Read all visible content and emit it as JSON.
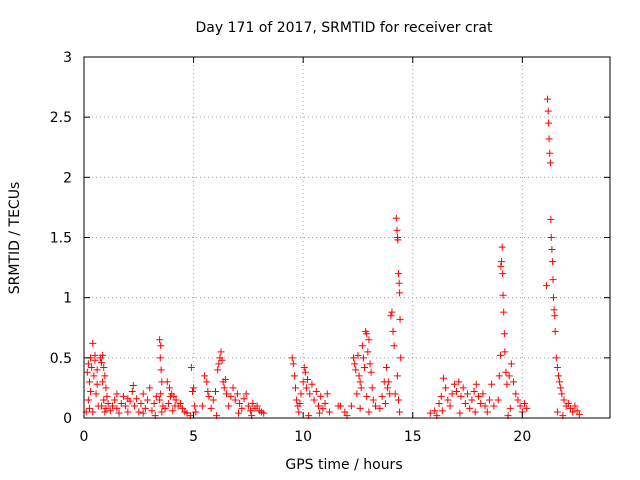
{
  "chart_data": {
    "type": "scatter",
    "title": "Day 171 of 2017, SRMTID for receiver crat",
    "xlabel": "GPS time / hours",
    "ylabel": "SRMTID / TECUs",
    "xlim": [
      0,
      24
    ],
    "ylim": [
      0,
      3
    ],
    "xticks": [
      0,
      5,
      10,
      15,
      20
    ],
    "xtick_labels": [
      "0",
      "5",
      "10",
      "15",
      "20"
    ],
    "yticks": [
      0,
      0.5,
      1,
      1.5,
      2,
      2.5,
      3
    ],
    "ytick_labels": [
      "0",
      "0.5",
      "1",
      "1.5",
      "2",
      "2.5",
      "3"
    ],
    "grid": true,
    "marker": "+",
    "color": "#ff0000",
    "series": [
      {
        "name": "SRMTID",
        "points": [
          [
            0.1,
            0.05
          ],
          [
            0.15,
            0.38
          ],
          [
            0.2,
            0.45
          ],
          [
            0.25,
            0.3
          ],
          [
            0.3,
            0.5
          ],
          [
            0.35,
            0.42
          ],
          [
            0.4,
            0.62
          ],
          [
            0.45,
            0.35
          ],
          [
            0.5,
            0.48
          ],
          [
            0.55,
            0.2
          ],
          [
            0.6,
            0.4
          ],
          [
            0.65,
            0.1
          ],
          [
            0.3,
            0.22
          ],
          [
            0.2,
            0.15
          ],
          [
            0.4,
            0.05
          ],
          [
            0.5,
            0.52
          ],
          [
            0.25,
            0.08
          ],
          [
            0.6,
            0.28
          ],
          [
            0.75,
            0.5
          ],
          [
            0.8,
            0.46
          ],
          [
            0.85,
            0.52
          ],
          [
            0.9,
            0.42
          ],
          [
            0.95,
            0.35
          ],
          [
            1.0,
            0.25
          ],
          [
            1.05,
            0.18
          ],
          [
            0.8,
            0.1
          ],
          [
            0.9,
            0.15
          ],
          [
            1.0,
            0.08
          ],
          [
            1.1,
            0.12
          ],
          [
            0.85,
            0.3
          ],
          [
            0.95,
            0.05
          ],
          [
            1.2,
            0.06
          ],
          [
            1.3,
            0.1
          ],
          [
            1.4,
            0.15
          ],
          [
            1.5,
            0.08
          ],
          [
            1.6,
            0.04
          ],
          [
            1.7,
            0.12
          ],
          [
            1.8,
            0.18
          ],
          [
            1.9,
            0.1
          ],
          [
            2.0,
            0.05
          ],
          [
            2.1,
            0.14
          ],
          [
            2.2,
            0.22
          ],
          [
            2.25,
            0.27
          ],
          [
            2.3,
            0.1
          ],
          [
            2.4,
            0.16
          ],
          [
            2.5,
            0.05
          ],
          [
            2.6,
            0.12
          ],
          [
            2.7,
            0.2
          ],
          [
            2.8,
            0.08
          ],
          [
            2.9,
            0.15
          ],
          [
            3.0,
            0.25
          ],
          [
            3.1,
            0.06
          ],
          [
            3.2,
            0.12
          ],
          [
            3.3,
            0.18
          ],
          [
            1.5,
            0.2
          ],
          [
            2.0,
            0.16
          ],
          [
            2.7,
            0.04
          ],
          [
            3.25,
            0.02
          ],
          [
            3.45,
            0.65
          ],
          [
            3.5,
            0.6
          ],
          [
            3.48,
            0.5
          ],
          [
            3.52,
            0.4
          ],
          [
            3.55,
            0.3
          ],
          [
            3.5,
            0.2
          ],
          [
            3.6,
            0.1
          ],
          [
            3.55,
            0.05
          ],
          [
            3.45,
            0.15
          ],
          [
            3.7,
            0.08
          ],
          [
            3.8,
            0.3
          ],
          [
            3.9,
            0.25
          ],
          [
            4.0,
            0.2
          ],
          [
            4.1,
            0.18
          ],
          [
            4.2,
            0.15
          ],
          [
            4.3,
            0.1
          ],
          [
            4.4,
            0.12
          ],
          [
            4.5,
            0.08
          ],
          [
            4.6,
            0.05
          ],
          [
            4.7,
            0.04
          ],
          [
            3.85,
            0.12
          ],
          [
            3.95,
            0.18
          ],
          [
            4.05,
            0.06
          ],
          [
            4.15,
            0.1
          ],
          [
            4.9,
            0.42
          ],
          [
            5.0,
            0.25
          ],
          [
            4.95,
            0.22
          ],
          [
            5.05,
            0.1
          ],
          [
            5.1,
            0.05
          ],
          [
            4.85,
            0.02
          ],
          [
            5.4,
            0.1
          ],
          [
            5.5,
            0.35
          ],
          [
            5.6,
            0.3
          ],
          [
            5.7,
            0.18
          ],
          [
            5.8,
            0.08
          ],
          [
            5.9,
            0.15
          ],
          [
            6.0,
            0.22
          ],
          [
            6.1,
            0.4
          ],
          [
            6.15,
            0.45
          ],
          [
            6.2,
            0.5
          ],
          [
            6.25,
            0.55
          ],
          [
            6.3,
            0.48
          ],
          [
            6.35,
            0.3
          ],
          [
            6.4,
            0.25
          ],
          [
            6.5,
            0.2
          ],
          [
            6.6,
            0.1
          ],
          [
            6.7,
            0.18
          ],
          [
            6.8,
            0.25
          ],
          [
            6.9,
            0.15
          ],
          [
            7.0,
            0.2
          ],
          [
            7.1,
            0.12
          ],
          [
            7.2,
            0.08
          ],
          [
            7.3,
            0.16
          ],
          [
            7.4,
            0.2
          ],
          [
            7.5,
            0.1
          ],
          [
            7.6,
            0.06
          ],
          [
            7.7,
            0.12
          ],
          [
            7.8,
            0.08
          ],
          [
            7.9,
            0.1
          ],
          [
            8.0,
            0.06
          ],
          [
            8.1,
            0.05
          ],
          [
            8.2,
            0.04
          ],
          [
            5.65,
            0.22
          ],
          [
            6.05,
            0.02
          ],
          [
            6.45,
            0.32
          ],
          [
            7.05,
            0.04
          ],
          [
            7.65,
            0.02
          ],
          [
            9.5,
            0.5
          ],
          [
            9.55,
            0.45
          ],
          [
            9.6,
            0.35
          ],
          [
            9.65,
            0.25
          ],
          [
            9.7,
            0.15
          ],
          [
            9.75,
            0.1
          ],
          [
            9.8,
            0.05
          ],
          [
            9.9,
            0.2
          ],
          [
            10.0,
            0.3
          ],
          [
            10.05,
            0.42
          ],
          [
            10.1,
            0.38
          ],
          [
            10.15,
            0.25
          ],
          [
            10.2,
            0.32
          ],
          [
            10.3,
            0.2
          ],
          [
            10.4,
            0.28
          ],
          [
            10.5,
            0.15
          ],
          [
            10.6,
            0.22
          ],
          [
            10.7,
            0.1
          ],
          [
            10.8,
            0.18
          ],
          [
            10.9,
            0.08
          ],
          [
            11.0,
            0.12
          ],
          [
            11.1,
            0.2
          ],
          [
            11.2,
            0.05
          ],
          [
            10.25,
            0.02
          ],
          [
            10.75,
            0.04
          ],
          [
            9.85,
            0.12
          ],
          [
            11.6,
            0.1
          ],
          [
            11.7,
            0.1
          ],
          [
            11.9,
            0.05
          ],
          [
            12.0,
            0.02
          ],
          [
            12.2,
            0.1
          ],
          [
            12.3,
            0.5
          ],
          [
            12.35,
            0.45
          ],
          [
            12.4,
            0.4
          ],
          [
            12.5,
            0.52
          ],
          [
            12.55,
            0.35
          ],
          [
            12.6,
            0.3
          ],
          [
            12.65,
            0.25
          ],
          [
            12.7,
            0.6
          ],
          [
            12.75,
            0.5
          ],
          [
            12.8,
            0.42
          ],
          [
            12.85,
            0.72
          ],
          [
            12.9,
            0.7
          ],
          [
            12.95,
            0.55
          ],
          [
            13.0,
            0.65
          ],
          [
            13.05,
            0.45
          ],
          [
            13.1,
            0.38
          ],
          [
            13.15,
            0.25
          ],
          [
            13.2,
            0.15
          ],
          [
            13.3,
            0.1
          ],
          [
            12.45,
            0.2
          ],
          [
            12.6,
            0.08
          ],
          [
            12.9,
            0.18
          ],
          [
            13.0,
            0.05
          ],
          [
            13.5,
            0.08
          ],
          [
            13.6,
            0.18
          ],
          [
            13.7,
            0.3
          ],
          [
            13.8,
            0.42
          ],
          [
            13.85,
            0.25
          ],
          [
            13.9,
            0.3
          ],
          [
            13.95,
            0.2
          ],
          [
            14.0,
            0.85
          ],
          [
            14.05,
            0.88
          ],
          [
            14.1,
            0.72
          ],
          [
            14.15,
            0.6
          ],
          [
            14.2,
            0.2
          ],
          [
            14.25,
            1.66
          ],
          [
            14.28,
            1.56
          ],
          [
            14.3,
            1.5
          ],
          [
            14.32,
            1.48
          ],
          [
            14.35,
            1.2
          ],
          [
            14.38,
            1.12
          ],
          [
            14.4,
            1.04
          ],
          [
            14.42,
            0.82
          ],
          [
            14.45,
            0.5
          ],
          [
            14.3,
            0.35
          ],
          [
            14.35,
            0.15
          ],
          [
            14.4,
            0.05
          ],
          [
            13.75,
            0.12
          ],
          [
            15.8,
            0.04
          ],
          [
            16.0,
            0.06
          ],
          [
            16.1,
            0.02
          ],
          [
            16.2,
            0.12
          ],
          [
            16.3,
            0.18
          ],
          [
            16.4,
            0.33
          ],
          [
            16.5,
            0.25
          ],
          [
            16.6,
            0.15
          ],
          [
            16.7,
            0.1
          ],
          [
            16.8,
            0.2
          ],
          [
            16.9,
            0.28
          ],
          [
            17.0,
            0.22
          ],
          [
            17.1,
            0.3
          ],
          [
            17.2,
            0.18
          ],
          [
            17.3,
            0.25
          ],
          [
            17.4,
            0.12
          ],
          [
            17.5,
            0.2
          ],
          [
            17.6,
            0.08
          ],
          [
            17.7,
            0.15
          ],
          [
            17.8,
            0.22
          ],
          [
            17.9,
            0.28
          ],
          [
            18.0,
            0.18
          ],
          [
            18.1,
            0.12
          ],
          [
            18.2,
            0.2
          ],
          [
            18.3,
            0.1
          ],
          [
            18.4,
            0.05
          ],
          [
            18.5,
            0.15
          ],
          [
            18.6,
            0.28
          ],
          [
            18.7,
            0.1
          ],
          [
            16.35,
            0.06
          ],
          [
            17.15,
            0.04
          ],
          [
            17.85,
            0.05
          ],
          [
            18.9,
            0.15
          ],
          [
            18.95,
            0.35
          ],
          [
            19.0,
            0.52
          ],
          [
            19.02,
            1.26
          ],
          [
            19.05,
            1.3
          ],
          [
            19.08,
            1.42
          ],
          [
            19.1,
            1.2
          ],
          [
            19.12,
            1.02
          ],
          [
            19.15,
            0.88
          ],
          [
            19.18,
            0.7
          ],
          [
            19.2,
            0.55
          ],
          [
            19.25,
            0.38
          ],
          [
            19.3,
            0.28
          ],
          [
            19.4,
            0.35
          ],
          [
            19.5,
            0.45
          ],
          [
            19.6,
            0.3
          ],
          [
            19.7,
            0.2
          ],
          [
            19.8,
            0.15
          ],
          [
            19.9,
            0.1
          ],
          [
            20.0,
            0.05
          ],
          [
            20.1,
            0.12
          ],
          [
            20.2,
            0.08
          ],
          [
            19.45,
            0.08
          ],
          [
            19.35,
            0.02
          ],
          [
            21.1,
            1.1
          ],
          [
            21.15,
            2.65
          ],
          [
            21.18,
            2.55
          ],
          [
            21.2,
            2.45
          ],
          [
            21.22,
            2.32
          ],
          [
            21.25,
            2.2
          ],
          [
            21.28,
            2.12
          ],
          [
            21.3,
            1.65
          ],
          [
            21.32,
            1.5
          ],
          [
            21.35,
            1.4
          ],
          [
            21.38,
            1.3
          ],
          [
            21.4,
            1.15
          ],
          [
            21.42,
            1.0
          ],
          [
            21.45,
            0.9
          ],
          [
            21.48,
            0.85
          ],
          [
            21.5,
            0.72
          ],
          [
            21.55,
            0.5
          ],
          [
            21.6,
            0.42
          ],
          [
            21.65,
            0.35
          ],
          [
            21.7,
            0.3
          ],
          [
            21.75,
            0.25
          ],
          [
            21.8,
            0.2
          ],
          [
            21.9,
            0.15
          ],
          [
            22.0,
            0.1
          ],
          [
            22.1,
            0.12
          ],
          [
            22.2,
            0.08
          ],
          [
            22.3,
            0.05
          ],
          [
            22.4,
            0.1
          ],
          [
            22.5,
            0.06
          ],
          [
            22.6,
            0.03
          ],
          [
            21.6,
            0.05
          ],
          [
            21.85,
            0.02
          ]
        ]
      }
    ]
  }
}
